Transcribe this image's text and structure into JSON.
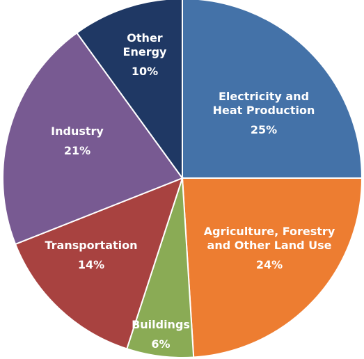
{
  "chart_data": {
    "type": "pie",
    "categories": [
      "Electricity and Heat Production",
      "Agriculture, Forestry and Other Land Use",
      "Buildings",
      "Transportation",
      "Industry",
      "Other Energy"
    ],
    "values": [
      25,
      24,
      6,
      14,
      21,
      10
    ],
    "value_labels": [
      "25%",
      "24%",
      "6%",
      "14%",
      "21%",
      "10%"
    ],
    "label_lines": [
      [
        "Electricity and",
        "Heat Production"
      ],
      [
        "Agriculture, Forestry",
        "and Other Land Use"
      ],
      [
        "Buildings"
      ],
      [
        "Transportation"
      ],
      [
        "Industry"
      ],
      [
        "Other",
        "Energy"
      ]
    ],
    "colors": [
      "#4472a8",
      "#ed7d31",
      "#8aab55",
      "#a84240",
      "#785a92",
      "#1f3864"
    ],
    "start_angle": "12 o'clock",
    "direction": "clockwise",
    "legend": "none"
  }
}
